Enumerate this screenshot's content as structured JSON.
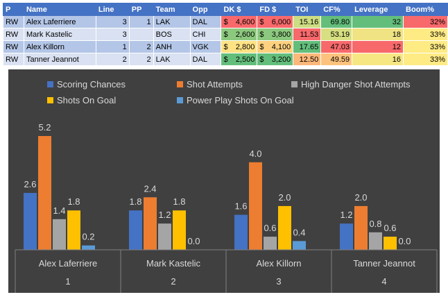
{
  "table": {
    "headers": [
      "P",
      "Name",
      "Line",
      "PP",
      "Team",
      "Opp",
      "DK $",
      "FD $",
      "TOI",
      "CF%",
      "Leverage",
      "Boom%"
    ],
    "rows": [
      {
        "pos": "RW",
        "name": "Alex Laferriere",
        "line": "3",
        "pp": "1",
        "team": "LAK",
        "opp": "DAL",
        "dk": "4,600",
        "fd": "6,000",
        "toi": "15.16",
        "cf": "69.80",
        "leverage": "32",
        "boom": "32%"
      },
      {
        "pos": "RW",
        "name": "Mark Kastelic",
        "line": "3",
        "pp": "",
        "team": "BOS",
        "opp": "CHI",
        "dk": "2,600",
        "fd": "3,800",
        "toi": "11.53",
        "cf": "53.19",
        "leverage": "18",
        "boom": "33%"
      },
      {
        "pos": "RW",
        "name": "Alex Killorn",
        "line": "1",
        "pp": "2",
        "team": "ANH",
        "opp": "VGK",
        "dk": "2,800",
        "fd": "4,100",
        "toi": "17.65",
        "cf": "47.03",
        "leverage": "12",
        "boom": "33%"
      },
      {
        "pos": "RW",
        "name": "Tanner Jeannot",
        "line": "2",
        "pp": "2",
        "team": "LAK",
        "opp": "DAL",
        "dk": "2,500",
        "fd": "3,200",
        "toi": "12.50",
        "cf": "49.59",
        "leverage": "16",
        "boom": "33%"
      }
    ],
    "currency_symbol": "$",
    "cell_colors": [
      {
        "dk": "#f8696b",
        "fd": "#f8696b",
        "toi": "#cddd82",
        "cf": "#63be7b",
        "leverage": "#63be7b",
        "boom": "#f8696b"
      },
      {
        "dk": "#8cc97e",
        "fd": "#8cc97e",
        "toi": "#f8696b",
        "cf": "#d7df81",
        "leverage": "#f0e383",
        "boom": "#ffeb84"
      },
      {
        "dk": "#ffe283",
        "fd": "#fdd17f",
        "toi": "#63be7b",
        "cf": "#f8696b",
        "leverage": "#f8696b",
        "boom": "#ffeb84"
      },
      {
        "dk": "#63be7b",
        "fd": "#63be7b",
        "toi": "#fcb87a",
        "cf": "#fdc37d",
        "leverage": "#f7e783",
        "boom": "#ffeb84"
      }
    ]
  },
  "chart_data": {
    "type": "bar",
    "title": "",
    "xlabel": "",
    "ylabel": "",
    "grid": false,
    "legend_position": "top",
    "categories": [
      {
        "name": "Alex Laferriere",
        "rank": "1"
      },
      {
        "name": "Mark Kastelic",
        "rank": "2"
      },
      {
        "name": "Alex Killorn",
        "rank": "3"
      },
      {
        "name": "Tanner Jeannot",
        "rank": "4"
      }
    ],
    "series": [
      {
        "name": "Scoring Chances",
        "color": "#4472c4",
        "values": [
          2.6,
          1.8,
          1.6,
          1.2
        ]
      },
      {
        "name": "Shot Attempts",
        "color": "#ed7d31",
        "values": [
          5.2,
          2.4,
          4.0,
          2.0
        ]
      },
      {
        "name": "High Danger Shot Attempts",
        "color": "#a5a5a5",
        "values": [
          1.4,
          1.2,
          0.6,
          0.8
        ]
      },
      {
        "name": "Shots On Goal",
        "color": "#ffc000",
        "values": [
          1.8,
          1.8,
          2.0,
          0.6
        ]
      },
      {
        "name": "Power Play Shots On Goal",
        "color": "#5b9bd5",
        "values": [
          0.2,
          0.0,
          0.4,
          0.0
        ]
      }
    ],
    "ylim": [
      0,
      5.2
    ],
    "colors": {
      "background": "#404040",
      "text": "#d9d9d9",
      "axis": "#7f7f7f"
    }
  }
}
